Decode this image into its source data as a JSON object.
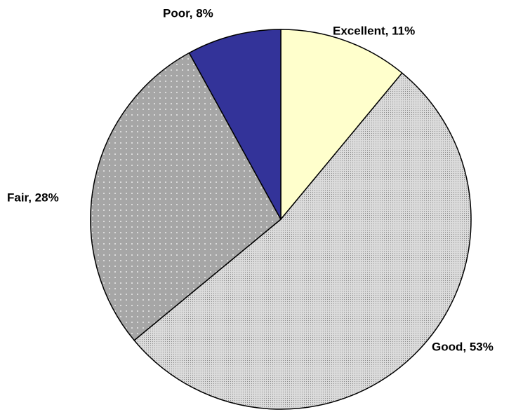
{
  "chart_data": {
    "type": "pie",
    "values": [
      11,
      53,
      28,
      8
    ],
    "value_labels": [
      "Excellent, 11%",
      "Good, 53%",
      "Fair, 28%",
      "Poor, 8%"
    ],
    "colors": [
      "#ffffcc",
      "#dcdcdc",
      "#a6a6a6",
      "#333399"
    ]
  }
}
